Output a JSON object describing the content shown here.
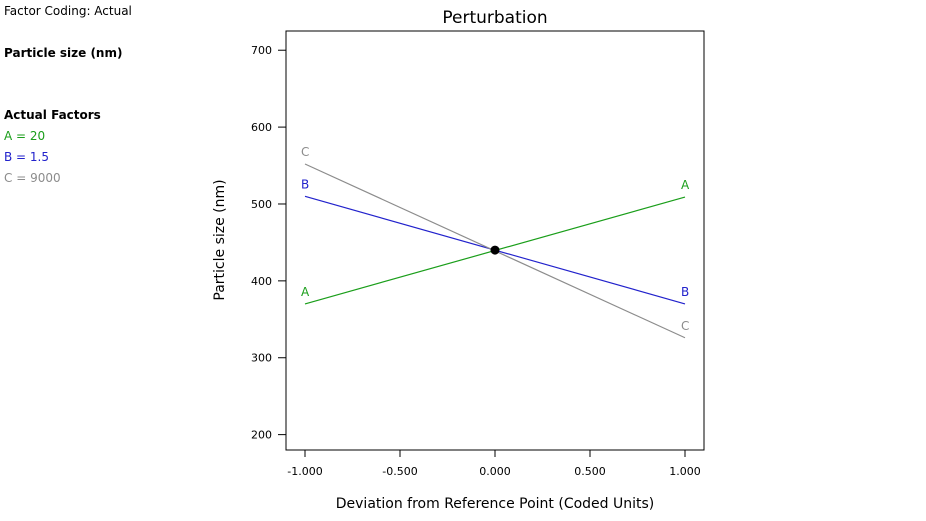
{
  "sidebar": {
    "factor_coding": "Factor Coding: Actual",
    "response_name": "Particle size (nm)",
    "actual_factors_heading": "Actual Factors",
    "factors": [
      {
        "label": "A = 20",
        "color": "#1a9e1a"
      },
      {
        "label": "B = 1.5",
        "color": "#2222cc"
      },
      {
        "label": "C = 9000",
        "color": "#8c8c8c"
      }
    ]
  },
  "chart_data": {
    "type": "line",
    "title": "Perturbation",
    "xlabel": "Deviation from Reference Point (Coded Units)",
    "ylabel": "Particle size (nm)",
    "xlim": [
      -1.1,
      1.1
    ],
    "ylim": [
      180,
      725
    ],
    "x_ticks": [
      -1,
      -0.5,
      0,
      0.5,
      1
    ],
    "x_tick_labels": [
      "-1.000",
      "-0.500",
      "0.000",
      "0.500",
      "1.000"
    ],
    "y_ticks": [
      200,
      300,
      400,
      500,
      600,
      700
    ],
    "y_tick_labels": [
      "200",
      "300",
      "400",
      "500",
      "600",
      "700"
    ],
    "grid": false,
    "reference_point": {
      "x": 0,
      "y": 440
    },
    "series": [
      {
        "name": "A",
        "color": "#1a9e1a",
        "x": [
          -1,
          1
        ],
        "y": [
          370,
          509
        ]
      },
      {
        "name": "B",
        "color": "#2222cc",
        "x": [
          -1,
          1
        ],
        "y": [
          510,
          370
        ]
      },
      {
        "name": "C",
        "color": "#8c8c8c",
        "x": [
          -1,
          1
        ],
        "y": [
          552,
          326
        ]
      }
    ]
  }
}
